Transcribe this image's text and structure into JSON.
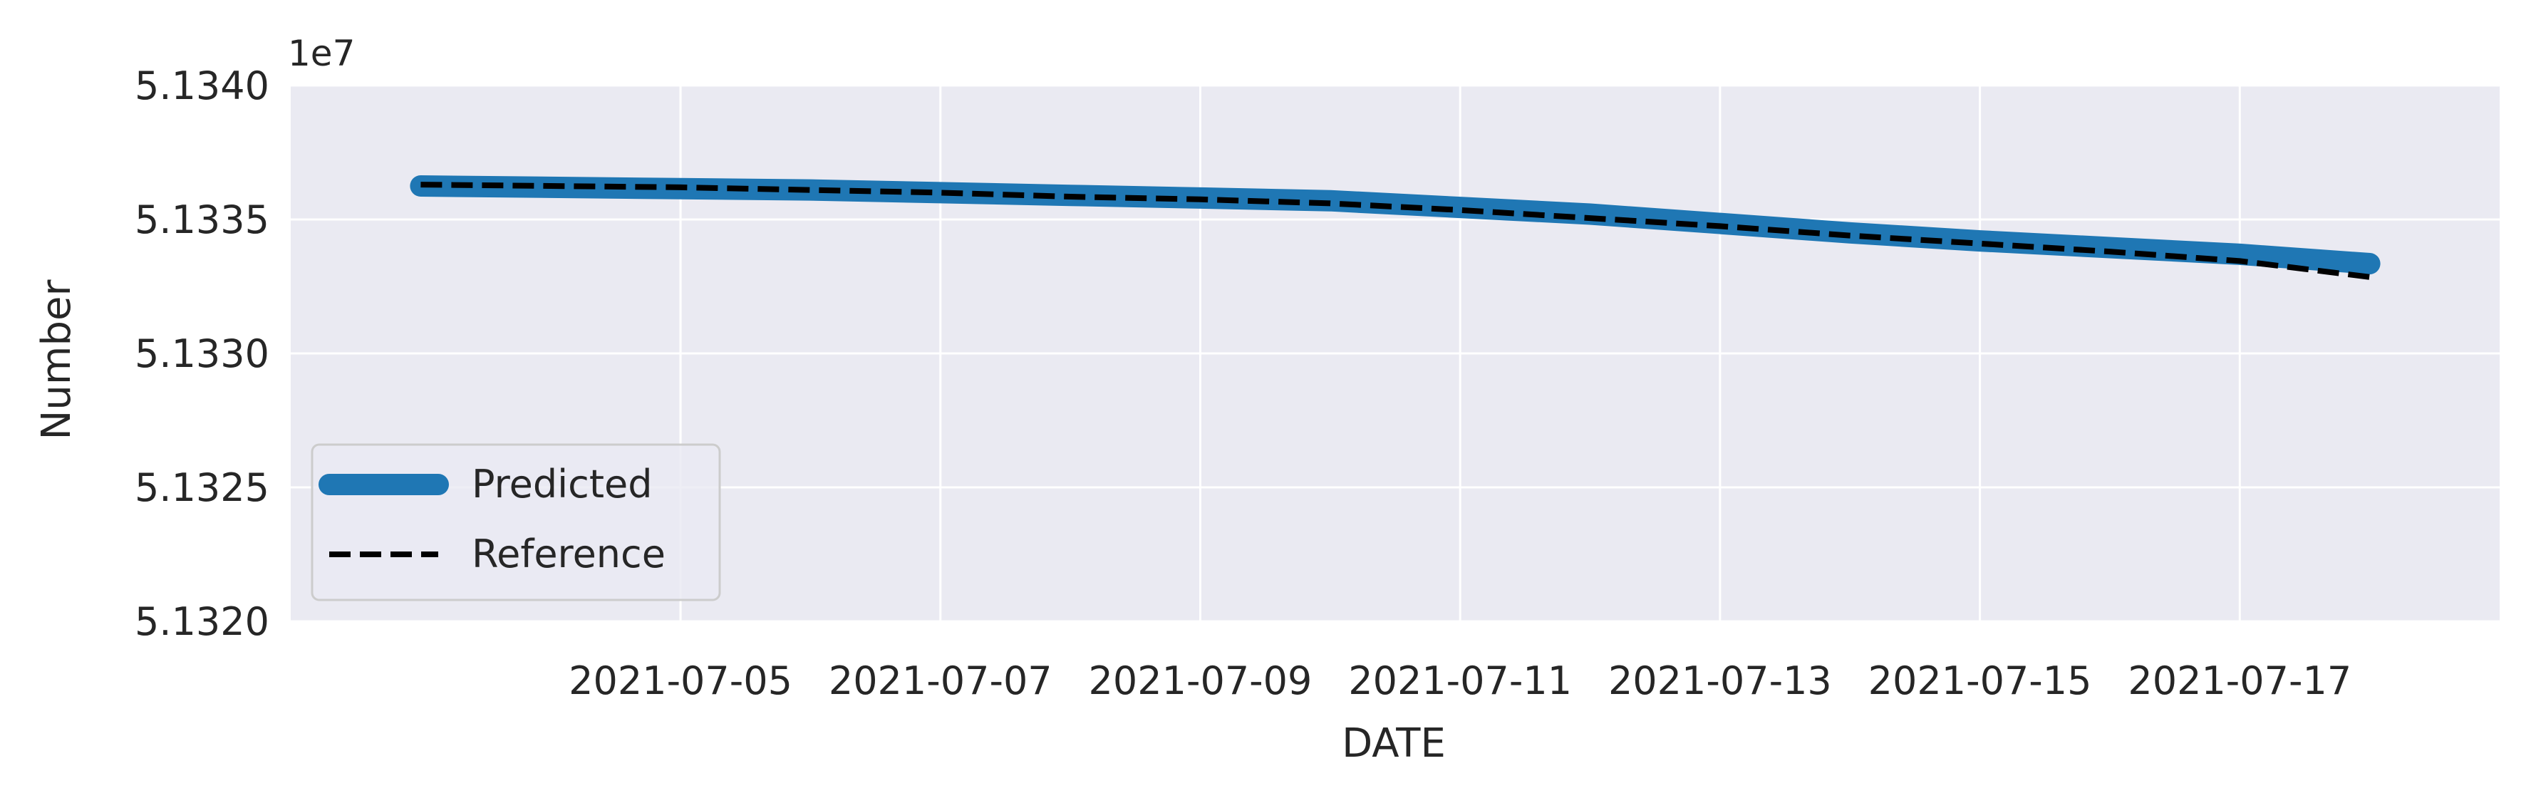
{
  "chart_data": {
    "type": "line",
    "title": "",
    "xlabel": "DATE",
    "ylabel": "Number",
    "y_offset_label": "1e7",
    "xlim": [
      "2021-07-02",
      "2021-07-19"
    ],
    "ylim": [
      51320000,
      51340000
    ],
    "x_ticks": [
      "2021-07-05",
      "2021-07-07",
      "2021-07-09",
      "2021-07-11",
      "2021-07-13",
      "2021-07-15",
      "2021-07-17"
    ],
    "y_ticks": [
      {
        "value": 51320000,
        "label": "5.1320"
      },
      {
        "value": 51325000,
        "label": "5.1325"
      },
      {
        "value": 51330000,
        "label": "5.1330"
      },
      {
        "value": 51335000,
        "label": "5.1335"
      },
      {
        "value": 51340000,
        "label": "5.1340"
      }
    ],
    "grid": true,
    "legend_position": "lower-left",
    "series": [
      {
        "name": "Predicted",
        "style": "solid-thick",
        "color": "#1f77b4",
        "points": [
          {
            "x": "2021-07-03",
            "y": 51336250
          },
          {
            "x": "2021-07-04",
            "y": 51336200
          },
          {
            "x": "2021-07-05",
            "y": 51336150
          },
          {
            "x": "2021-07-06",
            "y": 51336100
          },
          {
            "x": "2021-07-07",
            "y": 51336000
          },
          {
            "x": "2021-07-08",
            "y": 51335900
          },
          {
            "x": "2021-07-09",
            "y": 51335800
          },
          {
            "x": "2021-07-10",
            "y": 51335700
          },
          {
            "x": "2021-07-11",
            "y": 51335450
          },
          {
            "x": "2021-07-12",
            "y": 51335200
          },
          {
            "x": "2021-07-13",
            "y": 51334850
          },
          {
            "x": "2021-07-14",
            "y": 51334500
          },
          {
            "x": "2021-07-15",
            "y": 51334200
          },
          {
            "x": "2021-07-16",
            "y": 51333950
          },
          {
            "x": "2021-07-17",
            "y": 51333700
          },
          {
            "x": "2021-07-18",
            "y": 51333350
          }
        ]
      },
      {
        "name": "Reference",
        "style": "dashed",
        "color": "#000000",
        "points": [
          {
            "x": "2021-07-03",
            "y": 51336300
          },
          {
            "x": "2021-07-04",
            "y": 51336250
          },
          {
            "x": "2021-07-05",
            "y": 51336200
          },
          {
            "x": "2021-07-06",
            "y": 51336100
          },
          {
            "x": "2021-07-07",
            "y": 51336000
          },
          {
            "x": "2021-07-08",
            "y": 51335850
          },
          {
            "x": "2021-07-09",
            "y": 51335750
          },
          {
            "x": "2021-07-10",
            "y": 51335600
          },
          {
            "x": "2021-07-11",
            "y": 51335350
          },
          {
            "x": "2021-07-12",
            "y": 51335050
          },
          {
            "x": "2021-07-13",
            "y": 51334750
          },
          {
            "x": "2021-07-14",
            "y": 51334400
          },
          {
            "x": "2021-07-15",
            "y": 51334100
          },
          {
            "x": "2021-07-16",
            "y": 51333800
          },
          {
            "x": "2021-07-17",
            "y": 51333450
          },
          {
            "x": "2021-07-18",
            "y": 51332850
          }
        ]
      }
    ],
    "colors": {
      "plot_background": "#eaeaf2",
      "grid": "#ffffff",
      "text": "#262626"
    }
  }
}
